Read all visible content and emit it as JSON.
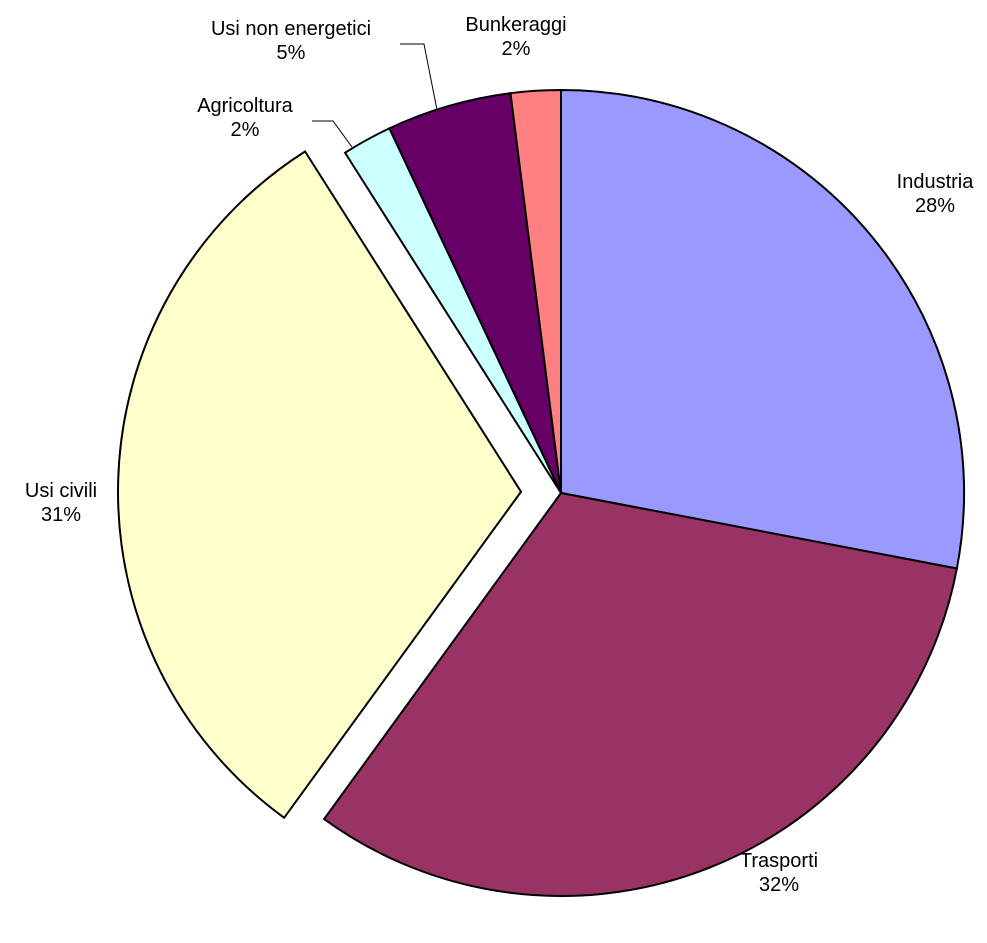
{
  "chart_data": {
    "type": "pie",
    "title": "",
    "exploded": [
      "Usi civili"
    ],
    "legend": "none",
    "slices": [
      {
        "name": "Industria",
        "value": 28,
        "pct_label": "28%",
        "color": "#9999ff"
      },
      {
        "name": "Trasporti",
        "value": 32,
        "pct_label": "32%",
        "color": "#993366"
      },
      {
        "name": "Usi civili",
        "value": 31,
        "pct_label": "31%",
        "color": "#ffffcc"
      },
      {
        "name": "Agricoltura",
        "value": 2,
        "pct_label": "2%",
        "color": "#ccffff"
      },
      {
        "name": "Usi non energetici",
        "value": 5,
        "pct_label": "5%",
        "color": "#660066"
      },
      {
        "name": "Bunkeraggi",
        "value": 2,
        "pct_label": "2%",
        "color": "#ff8080"
      }
    ]
  }
}
